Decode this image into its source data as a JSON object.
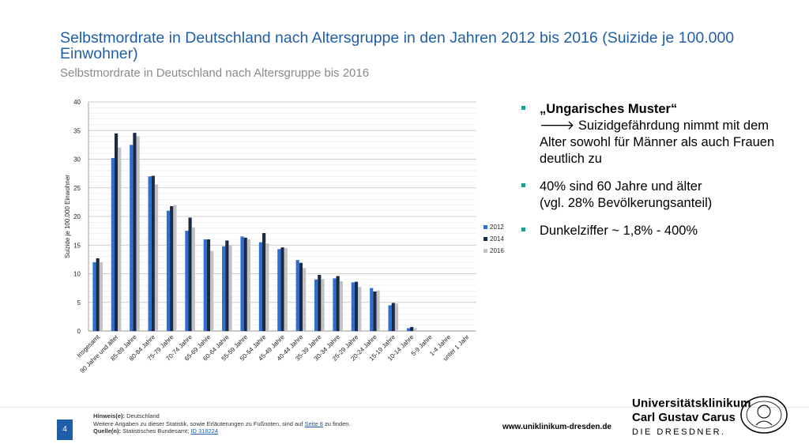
{
  "slide": {
    "title": "Selbstmordrate in Deutschland nach Altersgruppe in den Jahren 2012 bis 2016 (Suizide je 100.000 Einwohner)",
    "subtitle": "Selbstmordrate in Deutschland nach Altersgruppe bis 2016",
    "page_number": "4"
  },
  "bullets": [
    {
      "line1": "„Ungarisches Muster“",
      "line2": "🡒 Suizidgefährdung nimmt mit dem Alter sowohl für Männer als auch Frauen deutlich zu"
    },
    {
      "line1": "40% sind 60 Jahre und älter",
      "line2": "(vgl. 28% Bevölkerungsanteil)"
    },
    {
      "line1": "Dunkelziffer ~ 1,8% - 400%",
      "line2": ""
    }
  ],
  "footer": {
    "hint_label": "Hinweis(e):",
    "hint_text": "Deutschland",
    "more_text": "Weitere Angaben zu dieser Statistik, sowie Erläuterungen zu Fußnoten, sind auf",
    "more_link": "Seite 8",
    "more_suffix": "zu finden.",
    "source_label": "Quelle(n):",
    "source_text": "Statistisches Bundesamt;",
    "source_link": "ID 318224",
    "website": "www.uniklinikum-dresden.de"
  },
  "logo": {
    "line1": "Universitätsklinikum",
    "line2": "Carl Gustav Carus",
    "line3": "DIE DRESDNER."
  },
  "colors": {
    "accent": "#1f5ea8",
    "bullet": "#1a9e8f",
    "series_2012": "#2e6fd1",
    "series_2014": "#1a2a44",
    "series_2016": "#c2c2c2"
  },
  "chart_data": {
    "type": "bar",
    "title": "",
    "xlabel": "",
    "ylabel": "Suizide je 100.000 Einwohner",
    "ylim": [
      0,
      40
    ],
    "yticks": [
      0,
      5,
      10,
      15,
      20,
      25,
      30,
      35,
      40
    ],
    "grid": true,
    "legend_position": "right",
    "categories": [
      "Insgesamt",
      "90 Jahre und älter",
      "85-89 Jahre",
      "80-84 Jahre",
      "75-79 Jahre",
      "70-74 Jahre",
      "65-69 Jahre",
      "60-64 Jahre",
      "55-59 Jahre",
      "50-54 Jahre",
      "45-49 Jahre",
      "40-44 Jahre",
      "35-39 Jahre",
      "30-34 Jahre",
      "25-29 Jahre",
      "20-24 Jahre",
      "15-19 Jahre",
      "10-14 Jahre",
      "5-9 Jahre",
      "1-4 Jahre",
      "unter 1 Jahr"
    ],
    "series": [
      {
        "name": "2012",
        "values": [
          12.0,
          30.2,
          32.5,
          27.0,
          21.0,
          17.5,
          16.0,
          14.8,
          16.5,
          15.5,
          14.3,
          12.4,
          9.0,
          9.2,
          8.5,
          7.5,
          4.5,
          0.5,
          0,
          0,
          0
        ]
      },
      {
        "name": "2014",
        "values": [
          12.7,
          34.5,
          34.6,
          27.1,
          21.8,
          19.8,
          16.0,
          15.8,
          16.3,
          17.1,
          14.6,
          11.9,
          9.8,
          9.6,
          8.6,
          6.9,
          4.9,
          0.7,
          0,
          0,
          0
        ]
      },
      {
        "name": "2016",
        "values": [
          12.0,
          32.0,
          34.0,
          25.6,
          22.0,
          18.1,
          14.0,
          15.0,
          16.0,
          15.3,
          14.5,
          11.0,
          9.1,
          8.7,
          7.7,
          7.1,
          4.8,
          0.5,
          0,
          0,
          0
        ]
      }
    ]
  }
}
